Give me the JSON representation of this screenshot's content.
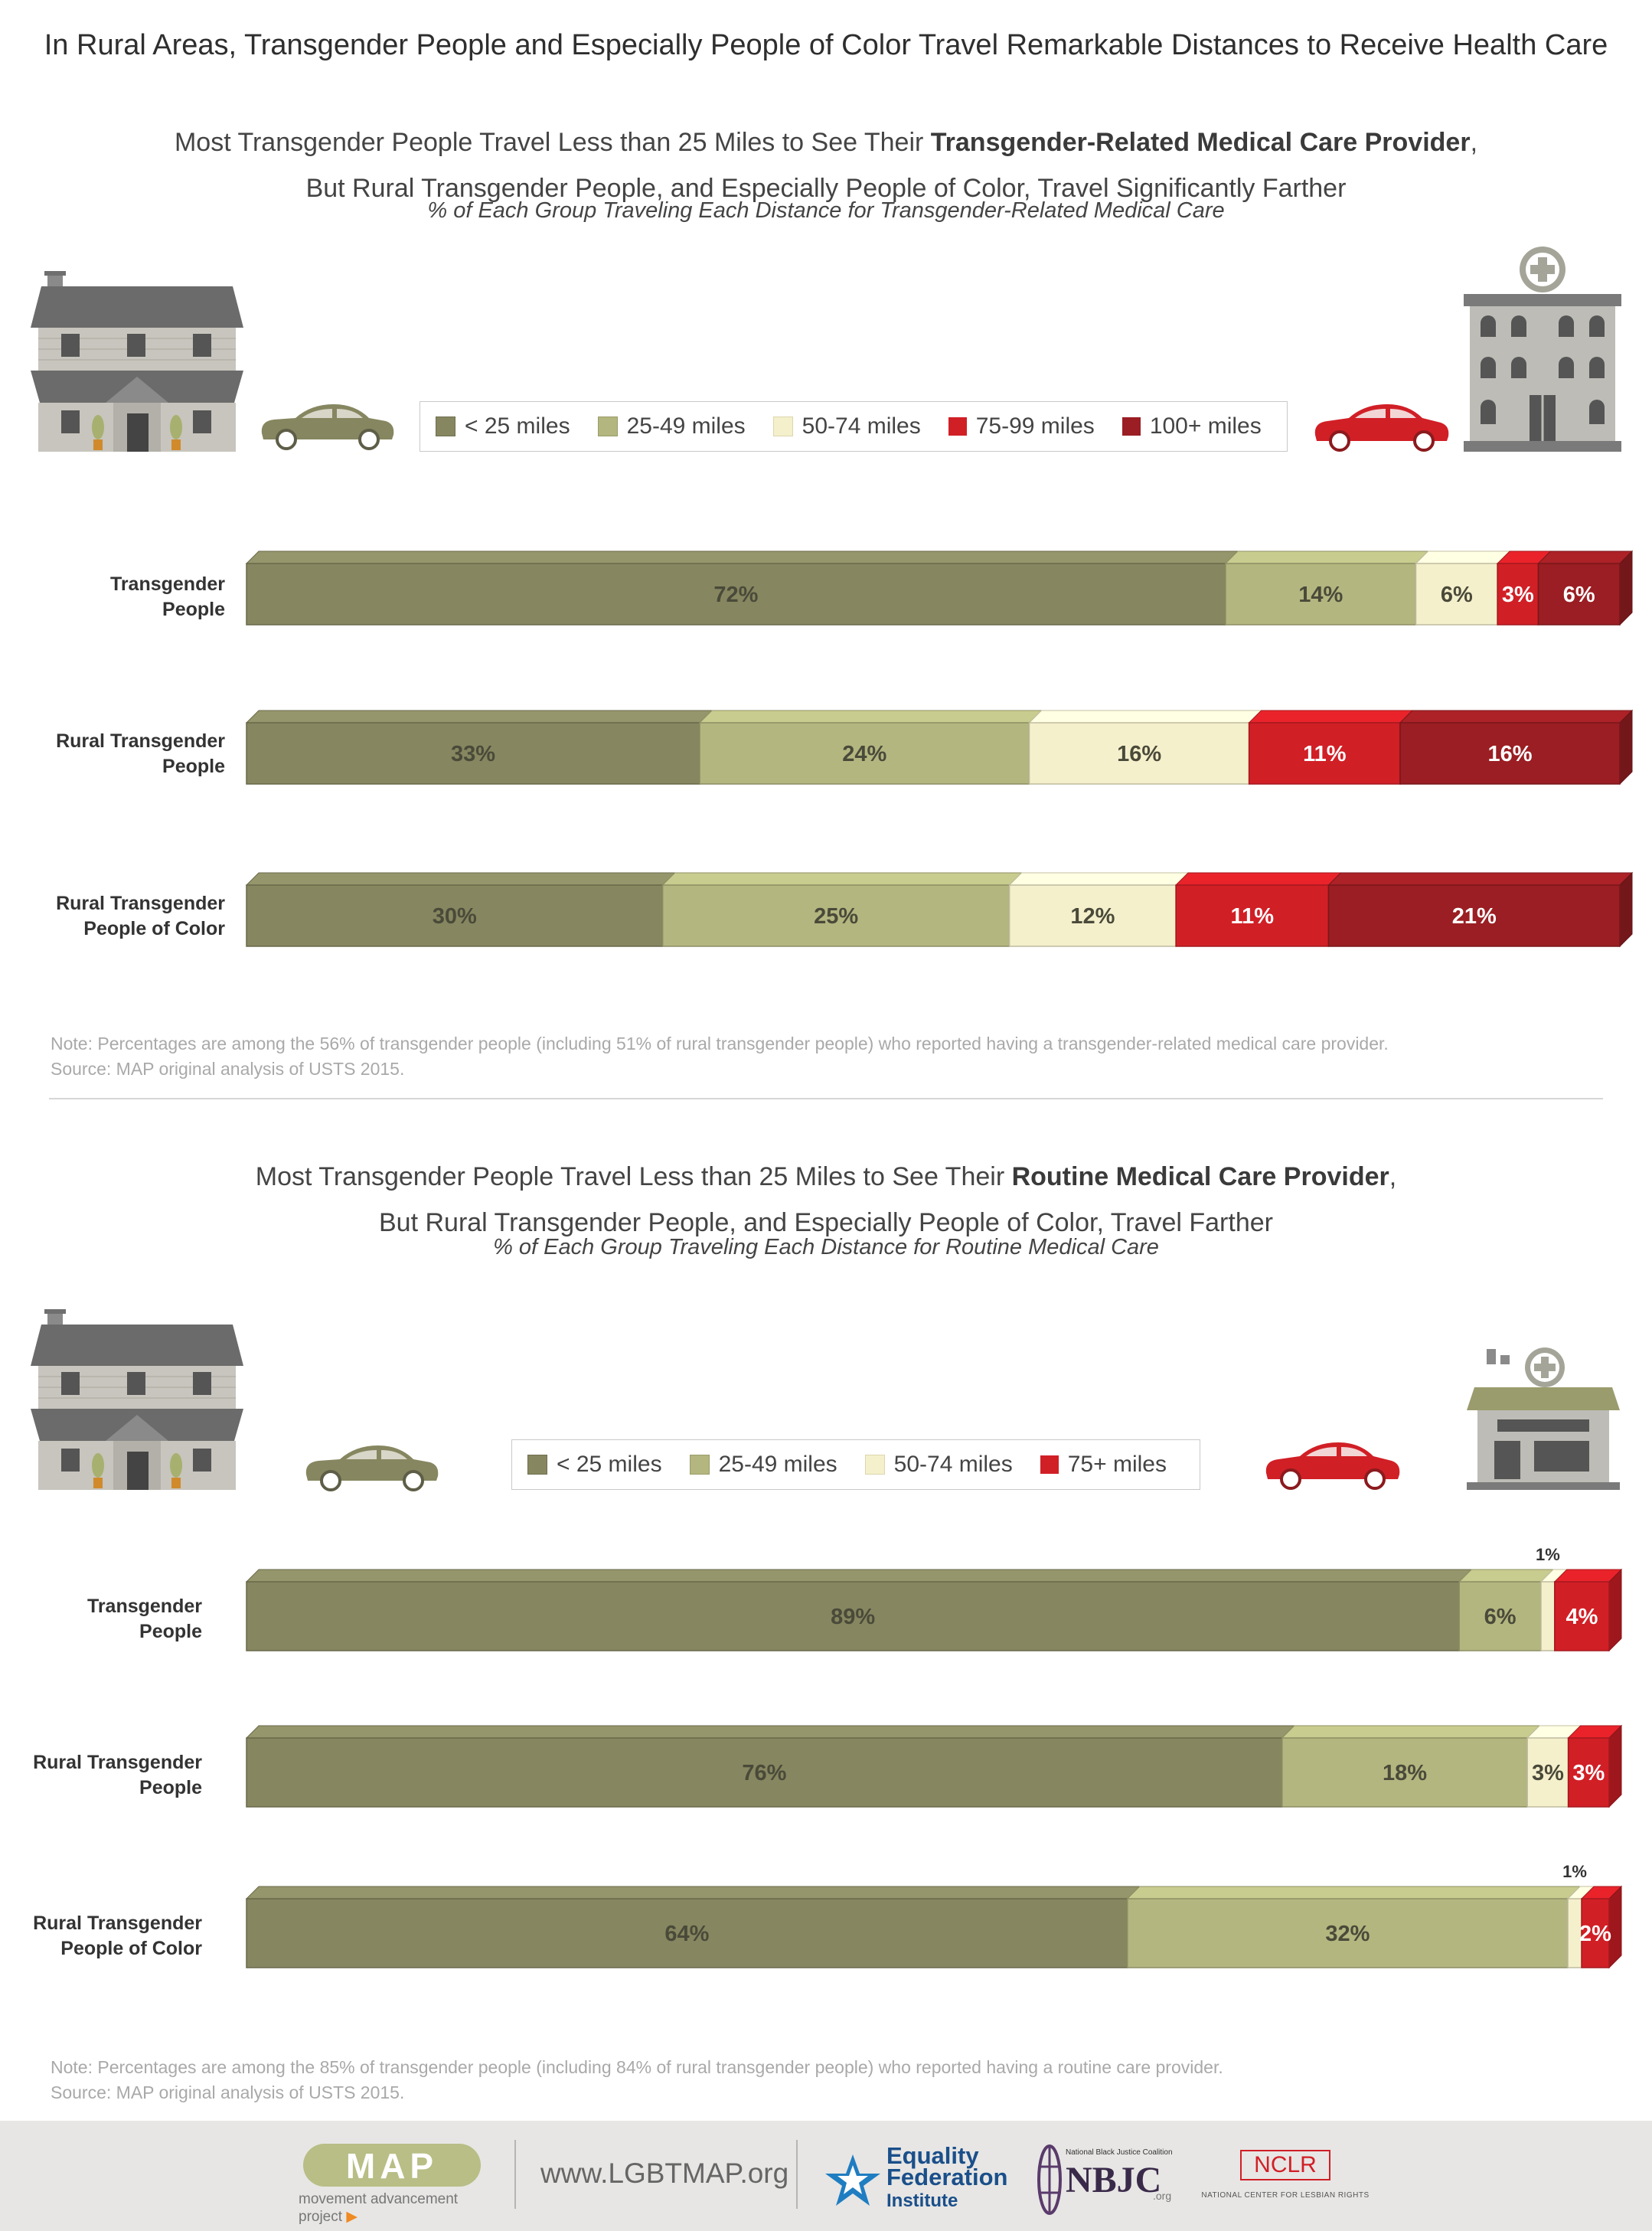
{
  "title": "In Rural Areas, Transgender People and Especially People of Color Travel Remarkable Distances to Receive Health Care",
  "colors": {
    "lt25": "#868660",
    "25to49": "#b3b67f",
    "50to74": "#f5f0cc",
    "75to99": "#d11f26",
    "100plus": "#9a1e23",
    "75plus": "#d11f26"
  },
  "section1": {
    "subtitle_line1_pre": "Most Transgender People Travel Less than 25 Miles to See Their ",
    "subtitle_line1_bold": "Transgender-Related Medical Care Provider",
    "subtitle_line1_post": ",",
    "subtitle_line2": "But Rural Transgender People, and Especially People of Color, Travel Significantly Farther",
    "subtitle_italic": "% of Each Group Traveling Each Distance for Transgender-Related Medical Care",
    "legend": [
      "< 25 miles",
      "25-49 miles",
      "50-74 miles",
      "75-99 miles",
      "100+ miles"
    ],
    "note_line1": "Note: Percentages are among the 56% of transgender people (including 51% of rural transgender people) who reported having a transgender-related medical care provider.",
    "note_line2": "Source: MAP original analysis of USTS 2015."
  },
  "section2": {
    "subtitle_line1_pre": "Most Transgender People Travel Less than 25 Miles to See Their ",
    "subtitle_line1_bold": "Routine Medical Care Provider",
    "subtitle_line1_post": ",",
    "subtitle_line2": "But Rural Transgender People, and Especially People of Color, Travel Farther",
    "subtitle_italic": "% of Each Group Traveling Each Distance for Routine Medical Care",
    "legend": [
      "< 25 miles",
      "25-49 miles",
      "50-74 miles",
      "75+ miles"
    ],
    "note_line1": "Note: Percentages are among the 85% of transgender people (including 84% of rural transgender people) who reported having a routine care provider.",
    "note_line2": "Source: MAP original analysis of USTS 2015."
  },
  "chart_data": [
    {
      "type": "bar",
      "orientation": "horizontal-stacked",
      "categories": [
        "Transgender People",
        "Rural Transgender People",
        "Rural Transgender People of Color"
      ],
      "category_lines": [
        [
          "Transgender",
          "People"
        ],
        [
          "Rural Transgender",
          "People"
        ],
        [
          "Rural Transgender",
          "People of Color"
        ]
      ],
      "series": [
        {
          "name": "< 25 miles",
          "values": [
            72,
            33,
            30
          ]
        },
        {
          "name": "25-49 miles",
          "values": [
            14,
            24,
            25
          ]
        },
        {
          "name": "50-74 miles",
          "values": [
            6,
            16,
            12
          ]
        },
        {
          "name": "75-99 miles",
          "values": [
            3,
            11,
            11
          ]
        },
        {
          "name": "100+ miles",
          "values": [
            6,
            16,
            21
          ]
        }
      ],
      "data_labels": [
        [
          "72%",
          "14%",
          "6%",
          "3%",
          "6%"
        ],
        [
          "33%",
          "24%",
          "16%",
          "11%",
          "16%"
        ],
        [
          "30%",
          "25%",
          "12%",
          "11%",
          "21%"
        ]
      ],
      "unit": "%",
      "legend_position": "top-center"
    },
    {
      "type": "bar",
      "orientation": "horizontal-stacked",
      "categories": [
        "Transgender People",
        "Rural Transgender People",
        "Rural Transgender People of Color"
      ],
      "category_lines": [
        [
          "Transgender",
          "People"
        ],
        [
          "Rural Transgender",
          "People"
        ],
        [
          "Rural Transgender",
          "People of Color"
        ]
      ],
      "series": [
        {
          "name": "< 25 miles",
          "values": [
            89,
            76,
            64
          ]
        },
        {
          "name": "25-49 miles",
          "values": [
            6,
            18,
            32
          ]
        },
        {
          "name": "50-74 miles",
          "values": [
            1,
            3,
            1
          ]
        },
        {
          "name": "75+ miles",
          "values": [
            4,
            3,
            2
          ]
        }
      ],
      "data_labels": [
        [
          "89%",
          "6%",
          "1%",
          "4%"
        ],
        [
          "76%",
          "18%",
          "3%",
          "3%"
        ],
        [
          "64%",
          "32%",
          "1%",
          "2%"
        ]
      ],
      "unit": "%",
      "legend_position": "top-center"
    }
  ],
  "footer": {
    "map_logo": "MAP",
    "map_tagline": "movement advancement project",
    "website": "www.LGBTMAP.org",
    "efi_line1": "Equality",
    "efi_line2": "Federation",
    "efi_line3": "Institute",
    "nbjc_small": "National Black Justice Coalition",
    "nbjc": "NBJC",
    "nbjc_org": ".org",
    "nclr": "NCLR",
    "nclr_full": "NATIONAL CENTER FOR LESBIAN RIGHTS"
  }
}
